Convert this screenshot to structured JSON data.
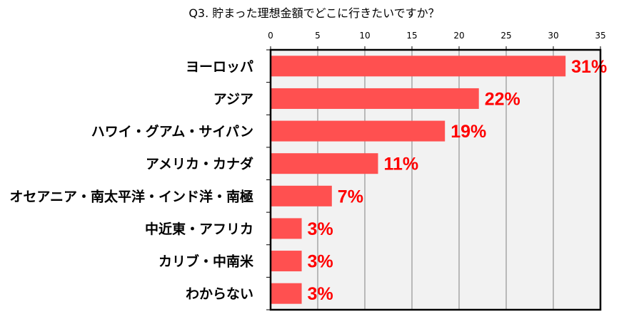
{
  "chart_data": {
    "type": "bar",
    "orientation": "horizontal",
    "title": "Q3. 貯まった理想金額でどこに行きたいですか？",
    "categories": [
      "ヨーロッパ",
      "アジア",
      "ハワイ・グアム・サイパン",
      "アメリカ・カナダ",
      "オセアニア・南太平洋・インド洋・南極",
      "中近東・アフリカ",
      "カリブ・中南米",
      "わからない"
    ],
    "values": [
      31.3,
      22.1,
      18.5,
      11.4,
      6.5,
      3.3,
      3.3,
      3.3
    ],
    "data_labels": [
      "31%",
      "22%",
      "19%",
      "11%",
      "7%",
      "3%",
      "3%",
      "3%"
    ],
    "xlim": [
      0,
      35
    ],
    "xticks": [
      "0",
      "5",
      "10",
      "15",
      "20",
      "25",
      "30",
      "35"
    ],
    "x_axis_position": "top",
    "grid": true,
    "colors": {
      "bar": "#ff5050",
      "label": "#ff0000",
      "plot_bg": "#f2f2f2",
      "grid": "#808080"
    }
  }
}
